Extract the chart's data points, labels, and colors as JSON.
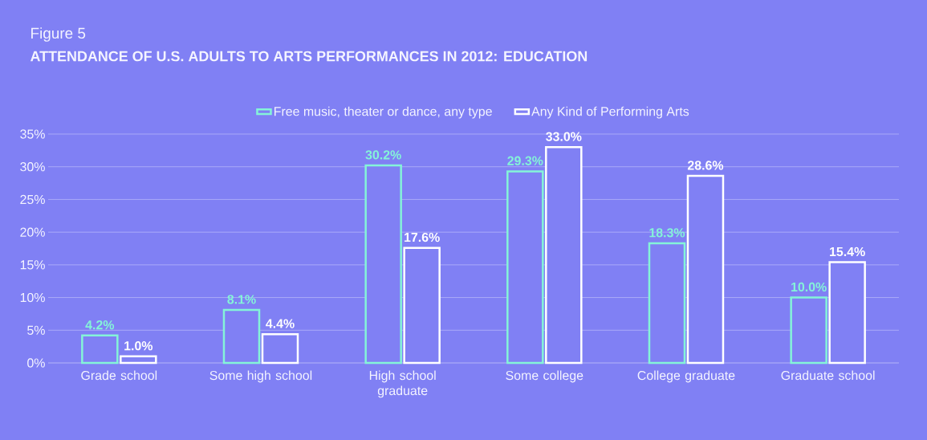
{
  "chart_data": {
    "type": "bar",
    "title": "Figure 5",
    "subtitle": "**ATTENDANCE OF U.S. ADULTS TO ARTS PERFORMANCES IN 2012: EDUCATION**",
    "categories": [
      "Grade school",
      "Some high school",
      "High school graduate",
      "Some college",
      "College graduate",
      "Graduate school"
    ],
    "series": [
      {
        "name": "Free music, theater or dance, any type",
        "color": "#84f4d8",
        "values": [
          4.2,
          8.1,
          30.2,
          29.3,
          18.3,
          10.0
        ],
        "value_labels": [
          "4.2%",
          "8.1%",
          "30.2%",
          "29.3%",
          "18.3%",
          "10.0%"
        ]
      },
      {
        "name": "Any Kind of Performing Arts",
        "color": "#ffffff",
        "values": [
          1.0,
          4.4,
          17.6,
          33.0,
          28.6,
          15.4
        ],
        "value_labels": [
          "1.0%",
          "4.4%",
          "17.6%",
          "33.0%",
          "28.6%",
          "15.4%"
        ]
      }
    ],
    "ylim": [
      0,
      35
    ],
    "yticks": [
      {
        "value": 0,
        "label": "0%"
      },
      {
        "value": 5,
        "label": "5%"
      },
      {
        "value": 10,
        "label": "10%"
      },
      {
        "value": 15,
        "label": "15%"
      },
      {
        "value": 20,
        "label": "20%"
      },
      {
        "value": 25,
        "label": "25%"
      },
      {
        "value": 30,
        "label": "30%"
      },
      {
        "value": 35,
        "label": "35%"
      }
    ],
    "grid": "y",
    "legend": "top"
  }
}
